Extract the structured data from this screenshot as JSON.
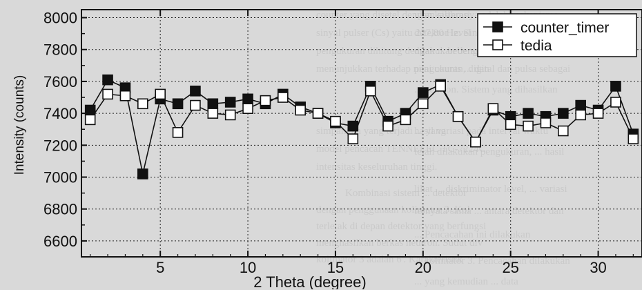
{
  "chart_data": {
    "type": "line",
    "xlabel": "2 Theta (degree)",
    "ylabel": "Intensity (counts)",
    "xlim": [
      0.5,
      32.5
    ],
    "ylim": [
      6500,
      8050
    ],
    "yticks": [
      6600,
      6800,
      7000,
      7200,
      7400,
      7600,
      7800,
      8000
    ],
    "xticks": [
      5,
      10,
      15,
      20,
      25,
      30
    ],
    "grid": true,
    "legend_position": "top-right",
    "series": [
      {
        "name": "counter_timer",
        "marker": "filled-square",
        "color": "#111111",
        "x": [
          1,
          2,
          3,
          4,
          5,
          6,
          7,
          8,
          9,
          10,
          11,
          12,
          13,
          14,
          15,
          16,
          17,
          18,
          19,
          20,
          21,
          22,
          23,
          24,
          25,
          26,
          27,
          28,
          29,
          30,
          31,
          32
        ],
        "y": [
          7420,
          7610,
          7560,
          7020,
          7490,
          7460,
          7540,
          7460,
          7470,
          7490,
          7460,
          7520,
          7440,
          7400,
          7340,
          7320,
          7570,
          7350,
          7400,
          7530,
          7580,
          7380,
          7220,
          7420,
          7380,
          7400,
          7380,
          7400,
          7450,
          7420,
          7570,
          7270
        ]
      },
      {
        "name": "tedia",
        "marker": "open-square",
        "color": "#111111",
        "x": [
          1,
          2,
          3,
          4,
          5,
          6,
          7,
          8,
          9,
          10,
          11,
          12,
          13,
          14,
          15,
          16,
          17,
          18,
          19,
          20,
          21,
          22,
          23,
          24,
          25,
          26,
          27,
          28,
          29,
          30,
          31,
          32
        ],
        "y": [
          7360,
          7520,
          7510,
          7460,
          7520,
          7280,
          7450,
          7400,
          7390,
          7430,
          7480,
          7500,
          7420,
          7400,
          7350,
          7240,
          7540,
          7320,
          7360,
          7460,
          7570,
          7380,
          7220,
          7430,
          7330,
          7320,
          7340,
          7290,
          7390,
          7400,
          7470,
          7240
        ]
      }
    ]
  }
}
